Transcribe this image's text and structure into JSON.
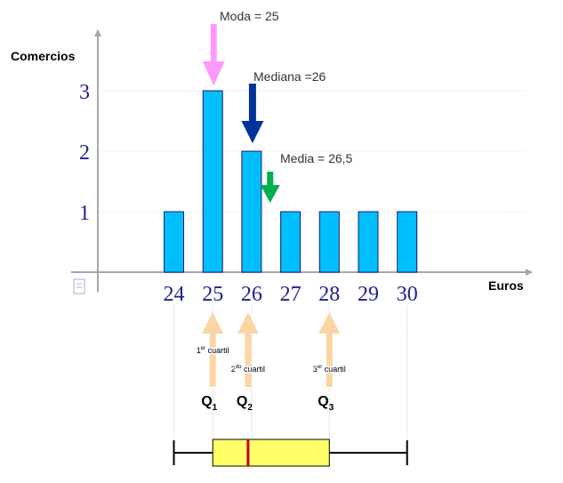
{
  "chart_data": {
    "type": "bar",
    "x": [
      24,
      25,
      26,
      27,
      28,
      29,
      30
    ],
    "values": [
      1,
      3,
      2,
      1,
      1,
      1,
      1
    ],
    "ylabel": "Comercios",
    "xlabel": "Euros",
    "y_ticks": [
      1,
      2,
      3
    ],
    "xlim": [
      24,
      30
    ],
    "ylim": [
      0,
      3
    ],
    "grid": "horizontal dotted",
    "bar_color": "#00bfff",
    "annotations": {
      "moda": {
        "label": "Moda = 25",
        "x": 25,
        "color": "#ff99ff"
      },
      "mediana": {
        "label": "Mediana =26",
        "x": 26,
        "color": "#003399"
      },
      "media": {
        "label": "Media = 26,5",
        "x": 26.5,
        "color": "#00b050"
      }
    },
    "quartiles": [
      {
        "symbol": "Q",
        "sub": "1",
        "note_num": "1",
        "note_sup": "er",
        "note_text": "cuartil",
        "x": 25
      },
      {
        "symbol": "Q",
        "sub": "2",
        "note_num": "2",
        "note_sup": "do",
        "note_text": "cuartil",
        "x": 26
      },
      {
        "symbol": "Q",
        "sub": "3",
        "note_num": "3",
        "note_sup": "er",
        "note_text": "cuartil",
        "x": 28
      }
    ],
    "quartile_arrow_color": "#fcd5a5",
    "boxplot": {
      "min": 24,
      "q1": 25,
      "median": 26,
      "q3": 28,
      "max": 30,
      "box_color": "#ffff66",
      "median_color": "#c00000"
    }
  }
}
